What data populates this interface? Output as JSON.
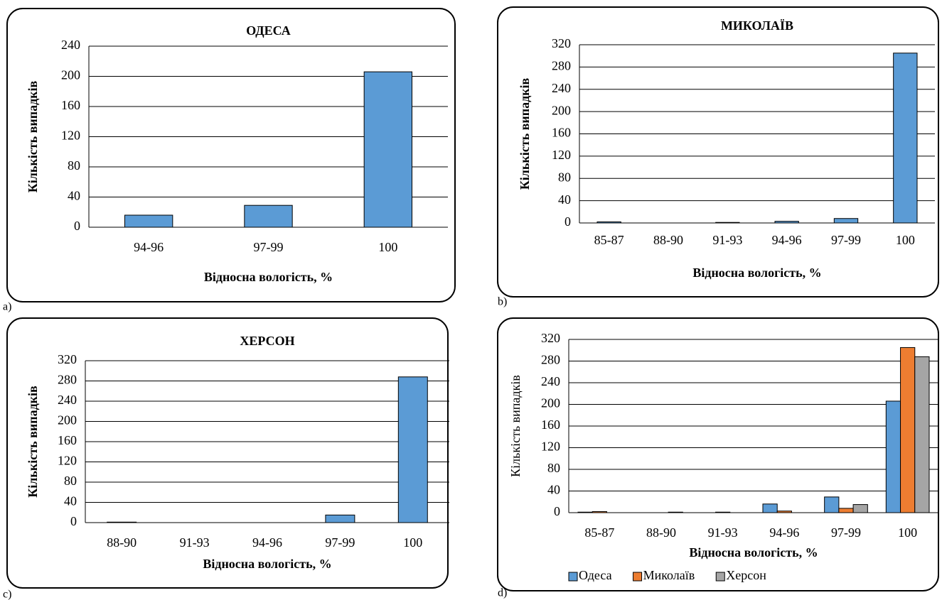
{
  "chart_data": [
    {
      "type": "bar",
      "label": "a)",
      "title": "ОДЕСА",
      "x_label": "Відносна вологість, %",
      "y_label": "Кількість випадків",
      "categories": [
        "94-96",
        "97-99",
        "100"
      ],
      "values": [
        16,
        29,
        206
      ],
      "color": "#5b9bd5",
      "ylim": [
        0,
        240
      ],
      "yticks": [
        0,
        40,
        80,
        120,
        160,
        200,
        240
      ],
      "grid": true
    },
    {
      "type": "bar",
      "label": "b)",
      "title": "МИКОЛАЇВ",
      "x_label": "Відносна вологість, %",
      "y_label": "Кількість випадків",
      "categories": [
        "85-87",
        "88-90",
        "91-93",
        "94-96",
        "97-99",
        "100"
      ],
      "values": [
        2,
        0,
        1,
        3,
        8,
        305
      ],
      "color": "#5b9bd5",
      "ylim": [
        0,
        320
      ],
      "yticks": [
        0,
        40,
        80,
        120,
        160,
        200,
        240,
        280,
        320
      ],
      "grid": true
    },
    {
      "type": "bar",
      "label": "c)",
      "title": "ХЕРСОН",
      "x_label": "Відносна вологість, %",
      "y_label": "Кількість випадків",
      "categories": [
        "88-90",
        "91-93",
        "94-96",
        "97-99",
        "100"
      ],
      "values": [
        1,
        0,
        0,
        15,
        288
      ],
      "color": "#5b9bd5",
      "ylim": [
        0,
        320
      ],
      "yticks": [
        0,
        40,
        80,
        120,
        160,
        200,
        240,
        280,
        320
      ],
      "grid": true
    },
    {
      "type": "bar",
      "label": "d)",
      "x_label": "Відносна вологість, %",
      "y_label": "Кількість випадків",
      "categories": [
        "85-87",
        "88-90",
        "91-93",
        "94-96",
        "97-99",
        "100"
      ],
      "series": [
        {
          "name": "Одеса",
          "color": "#5b9bd5",
          "values": [
            1,
            0,
            0,
            16,
            29,
            206
          ]
        },
        {
          "name": "Миколаїв",
          "color": "#ed7d31",
          "values": [
            2,
            0,
            1,
            3,
            8,
            305
          ]
        },
        {
          "name": "Херсон",
          "color": "#a5a5a5",
          "values": [
            0,
            1,
            0,
            0,
            15,
            288
          ]
        }
      ],
      "ylim": [
        0,
        320
      ],
      "yticks": [
        0,
        40,
        80,
        120,
        160,
        200,
        240,
        280,
        320
      ],
      "grid": true,
      "legend": "bottom"
    }
  ]
}
